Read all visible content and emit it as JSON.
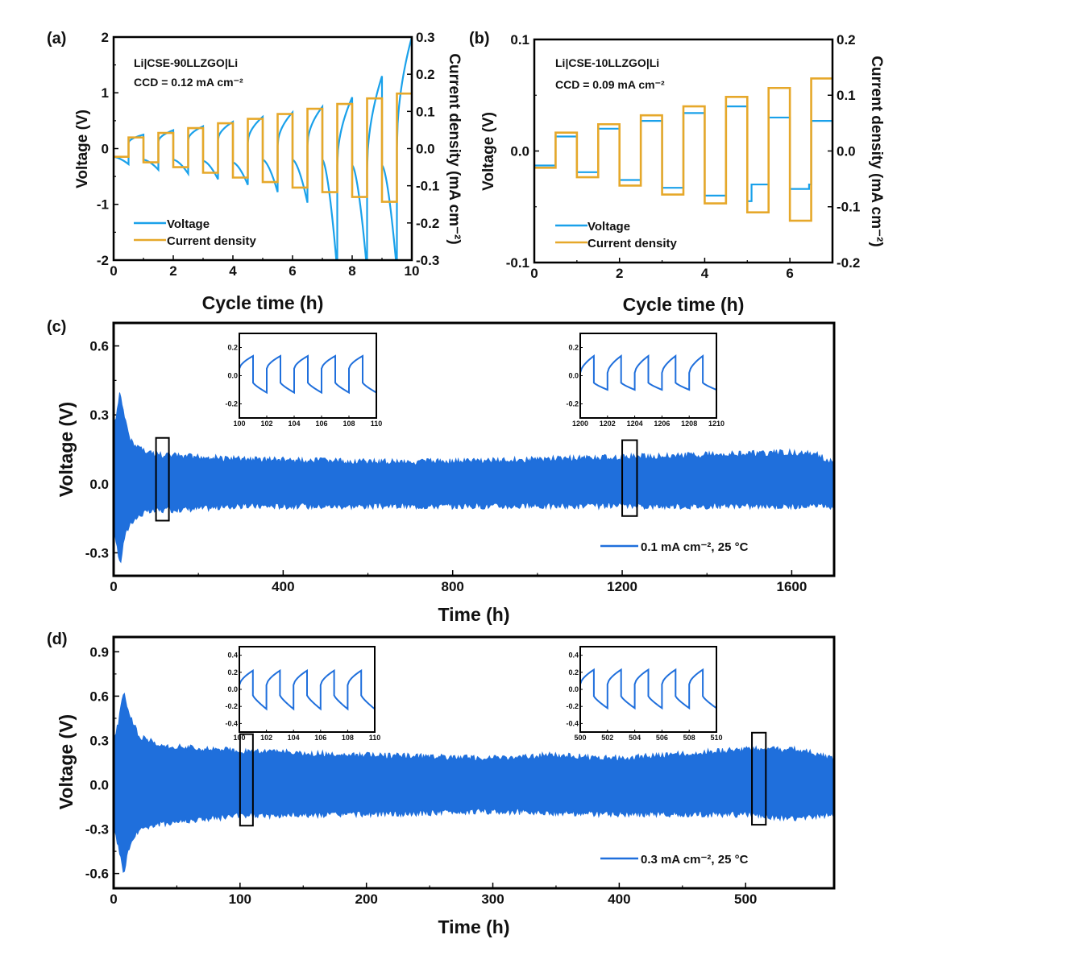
{
  "colors": {
    "voltage": "#1aa1ea",
    "current": "#e6a82a",
    "cycling": "#1f6fdc",
    "axis": "#000000"
  },
  "chart_data": [
    {
      "panel": "(a)",
      "type": "line",
      "annotation": [
        "Li|CSE-90LLZGO|Li",
        "CCD = 0.12 mA cm⁻²"
      ],
      "xlabel": "Cycle time (h)",
      "ylabel": "Voltage (V)",
      "y2label": "Current density (mA cm⁻²)",
      "xlim": [
        0,
        10
      ],
      "ylim": [
        -2,
        2
      ],
      "y2lim": [
        -0.3,
        0.3
      ],
      "xticks": [
        "0",
        "2",
        "4",
        "6",
        "8",
        "10"
      ],
      "yticks": [
        "-2",
        "-1",
        "0",
        "1",
        "2"
      ],
      "y2ticks": [
        "-0.3",
        "-0.2",
        "-0.1",
        "0.0",
        "0.1",
        "0.2",
        "0.3"
      ],
      "legend": {
        "position": "bottom-left",
        "entries": [
          "Voltage",
          "Current density"
        ]
      },
      "current_steps": [
        [
          0,
          0.5,
          -0.022
        ],
        [
          0.5,
          1,
          0.03
        ],
        [
          1,
          1.5,
          -0.037
        ],
        [
          1.5,
          2,
          0.042
        ],
        [
          2,
          2.5,
          -0.05
        ],
        [
          2.5,
          3,
          0.055
        ],
        [
          3,
          3.5,
          -0.065
        ],
        [
          3.5,
          4,
          0.068
        ],
        [
          4,
          4.5,
          -0.078
        ],
        [
          4.5,
          5,
          0.08
        ],
        [
          5,
          5.5,
          -0.09
        ],
        [
          5.5,
          6,
          0.093
        ],
        [
          6,
          6.5,
          -0.105
        ],
        [
          6.5,
          7,
          0.107
        ],
        [
          7,
          7.5,
          -0.117
        ],
        [
          7.5,
          8,
          0.12
        ],
        [
          8,
          8.5,
          -0.13
        ],
        [
          8.5,
          9,
          0.135
        ],
        [
          9,
          9.5,
          -0.143
        ],
        [
          9.5,
          10,
          0.148
        ]
      ],
      "voltage_segments": [
        [
          0,
          0.5,
          -0.15,
          -0.28
        ],
        [
          0.5,
          1,
          0.1,
          0.25
        ],
        [
          1,
          1.5,
          -0.2,
          -0.38
        ],
        [
          1.5,
          2,
          0.12,
          0.33
        ],
        [
          2,
          2.5,
          -0.2,
          -0.45
        ],
        [
          2.5,
          3,
          0.15,
          0.4
        ],
        [
          3,
          3.5,
          -0.22,
          -0.55
        ],
        [
          3.5,
          4,
          0.15,
          0.48
        ],
        [
          4,
          4.5,
          -0.25,
          -0.65
        ],
        [
          4.5,
          5,
          0.1,
          0.57
        ],
        [
          5,
          5.5,
          -0.2,
          -0.78
        ],
        [
          5.5,
          6,
          0.05,
          0.65
        ],
        [
          6,
          6.5,
          -0.2,
          -0.97
        ],
        [
          6.5,
          7,
          0.05,
          0.75
        ],
        [
          7,
          7.5,
          -0.2,
          -2.2
        ],
        [
          7.5,
          8,
          -0.3,
          0.92
        ],
        [
          8,
          8.5,
          -0.3,
          -2.2
        ],
        [
          8.5,
          9,
          -0.4,
          1.3
        ],
        [
          9,
          9.5,
          -0.3,
          -2.2
        ],
        [
          9.5,
          10,
          0.0,
          2.0
        ]
      ]
    },
    {
      "panel": "(b)",
      "type": "line",
      "annotation": [
        "Li|CSE-10LLZGO|Li",
        "CCD = 0.09 mA cm⁻²"
      ],
      "xlabel": "Cycle time (h)",
      "ylabel": "Voltage (V)",
      "y2label": "Current density (mA cm⁻²)",
      "xlim": [
        0,
        7
      ],
      "ylim": [
        -0.1,
        0.1
      ],
      "y2lim": [
        -0.2,
        0.2
      ],
      "xticks": [
        "0",
        "2",
        "4",
        "6"
      ],
      "yticks": [
        "-0.1",
        "0.0",
        "0.1"
      ],
      "y2ticks": [
        "-0.2",
        "-0.1",
        "0.0",
        "0.1",
        "0.2"
      ],
      "legend": {
        "position": "bottom-left",
        "entries": [
          "Voltage",
          "Current density"
        ]
      },
      "current_steps": [
        [
          0,
          0.5,
          -0.03
        ],
        [
          0.5,
          1,
          0.033
        ],
        [
          1,
          1.5,
          -0.047
        ],
        [
          1.5,
          2,
          0.048
        ],
        [
          2,
          2.5,
          -0.062
        ],
        [
          2.5,
          3,
          0.064
        ],
        [
          3,
          3.5,
          -0.078
        ],
        [
          3.5,
          4,
          0.08
        ],
        [
          4,
          4.5,
          -0.094
        ],
        [
          4.5,
          5,
          0.097
        ],
        [
          5,
          5.5,
          -0.11
        ],
        [
          5.5,
          6,
          0.113
        ],
        [
          6,
          6.5,
          -0.125
        ],
        [
          6.5,
          7,
          0.13
        ]
      ],
      "voltage_steps": [
        [
          0,
          0.5,
          -0.013
        ],
        [
          0.5,
          1,
          0.013
        ],
        [
          1,
          1.5,
          -0.019
        ],
        [
          1.5,
          2,
          0.02
        ],
        [
          2,
          2.5,
          -0.026
        ],
        [
          2.5,
          3,
          0.027
        ],
        [
          3,
          3.5,
          -0.033
        ],
        [
          3.5,
          4,
          0.034
        ],
        [
          4,
          4.5,
          -0.04
        ],
        [
          4.5,
          5,
          0.04
        ],
        [
          5,
          5.1,
          -0.045
        ],
        [
          5.1,
          5.5,
          -0.03
        ],
        [
          5.5,
          6,
          0.03
        ],
        [
          6,
          6.45,
          -0.034
        ],
        [
          6.45,
          6.5,
          -0.03
        ],
        [
          6.5,
          7,
          0.027
        ]
      ]
    },
    {
      "panel": "(c)",
      "type": "area",
      "xlabel": "Time (h)",
      "ylabel": "Voltage (V)",
      "xlim": [
        0,
        1700
      ],
      "ylim": [
        -0.4,
        0.7
      ],
      "xticks": [
        "0",
        "400",
        "800",
        "1200",
        "1600"
      ],
      "yticks": [
        "-0.3",
        "0.0",
        "0.3",
        "0.6"
      ],
      "legend": {
        "position": "bottom-right",
        "entries": [
          "0.1 mA cm⁻², 25 °C"
        ]
      },
      "upper": [
        [
          0,
          0.25
        ],
        [
          8,
          0.33
        ],
        [
          15,
          0.41
        ],
        [
          25,
          0.3
        ],
        [
          40,
          0.2
        ],
        [
          70,
          0.16
        ],
        [
          100,
          0.14
        ],
        [
          300,
          0.12
        ],
        [
          600,
          0.11
        ],
        [
          800,
          0.11
        ],
        [
          1000,
          0.12
        ],
        [
          1200,
          0.13
        ],
        [
          1400,
          0.14
        ],
        [
          1600,
          0.15
        ],
        [
          1660,
          0.14
        ],
        [
          1700,
          0.1
        ]
      ],
      "lower": [
        [
          0,
          -0.2
        ],
        [
          8,
          -0.28
        ],
        [
          15,
          -0.37
        ],
        [
          25,
          -0.25
        ],
        [
          40,
          -0.18
        ],
        [
          70,
          -0.14
        ],
        [
          100,
          -0.13
        ],
        [
          300,
          -0.11
        ],
        [
          600,
          -0.11
        ],
        [
          800,
          -0.11
        ],
        [
          1000,
          -0.11
        ],
        [
          1200,
          -0.11
        ],
        [
          1400,
          -0.11
        ],
        [
          1600,
          -0.11
        ],
        [
          1700,
          -0.11
        ]
      ],
      "highlights": [
        [
          100,
          130
        ],
        [
          1200,
          1235
        ]
      ],
      "insets": [
        {
          "xlim": [
            100,
            110
          ],
          "ylim": [
            -0.3,
            0.3
          ],
          "xticks": [
            "100",
            "102",
            "104",
            "106",
            "108",
            "110"
          ],
          "yticks": [
            "-0.2",
            "0.0",
            "0.2"
          ],
          "pos_start": 0.05,
          "pos_peak": 0.14,
          "neg_start": -0.05,
          "neg_end": -0.12
        },
        {
          "xlim": [
            1200,
            1210
          ],
          "ylim": [
            -0.3,
            0.3
          ],
          "xticks": [
            "1200",
            "1202",
            "1204",
            "1206",
            "1208",
            "1210"
          ],
          "yticks": [
            "-0.2",
            "0.0",
            "0.2"
          ],
          "pos_start": 0.02,
          "pos_peak": 0.14,
          "neg_start": -0.05,
          "neg_end": -0.1
        }
      ]
    },
    {
      "panel": "(d)",
      "type": "area",
      "xlabel": "Time (h)",
      "ylabel": "Voltage (V)",
      "xlim": [
        0,
        570
      ],
      "ylim": [
        -0.7,
        1.0
      ],
      "xticks": [
        "0",
        "100",
        "200",
        "300",
        "400",
        "500"
      ],
      "yticks": [
        "-0.6",
        "-0.3",
        "0.0",
        "0.3",
        "0.6",
        "0.9"
      ],
      "legend": {
        "position": "bottom-right",
        "entries": [
          "0.3 mA cm⁻², 25 °C"
        ]
      },
      "upper": [
        [
          0,
          0.3
        ],
        [
          4,
          0.45
        ],
        [
          8,
          0.66
        ],
        [
          12,
          0.5
        ],
        [
          20,
          0.35
        ],
        [
          40,
          0.28
        ],
        [
          100,
          0.25
        ],
        [
          200,
          0.22
        ],
        [
          300,
          0.2
        ],
        [
          345,
          0.22
        ],
        [
          400,
          0.2
        ],
        [
          500,
          0.26
        ],
        [
          540,
          0.26
        ],
        [
          570,
          0.2
        ]
      ],
      "lower": [
        [
          0,
          -0.3
        ],
        [
          4,
          -0.45
        ],
        [
          8,
          -0.62
        ],
        [
          12,
          -0.45
        ],
        [
          20,
          -0.32
        ],
        [
          40,
          -0.28
        ],
        [
          100,
          -0.23
        ],
        [
          200,
          -0.22
        ],
        [
          300,
          -0.2
        ],
        [
          400,
          -0.22
        ],
        [
          500,
          -0.22
        ],
        [
          540,
          -0.25
        ],
        [
          570,
          -0.22
        ]
      ],
      "highlights": [
        [
          100,
          110
        ],
        [
          505,
          516
        ]
      ],
      "insets": [
        {
          "xlim": [
            100,
            110
          ],
          "ylim": [
            -0.5,
            0.5
          ],
          "xticks": [
            "100",
            "102",
            "104",
            "106",
            "108",
            "110"
          ],
          "yticks": [
            "-0.4",
            "-0.2",
            "0.0",
            "0.2",
            "0.4"
          ],
          "pos_start": 0.05,
          "pos_peak": 0.22,
          "neg_start": -0.07,
          "neg_end": -0.23
        },
        {
          "xlim": [
            500,
            510
          ],
          "ylim": [
            -0.5,
            0.5
          ],
          "xticks": [
            "500",
            "502",
            "504",
            "506",
            "508",
            "510"
          ],
          "yticks": [
            "-0.4",
            "-0.2",
            "0.0",
            "0.2",
            "0.4"
          ],
          "pos_start": 0.06,
          "pos_peak": 0.23,
          "neg_start": -0.08,
          "neg_end": -0.22
        }
      ]
    }
  ]
}
